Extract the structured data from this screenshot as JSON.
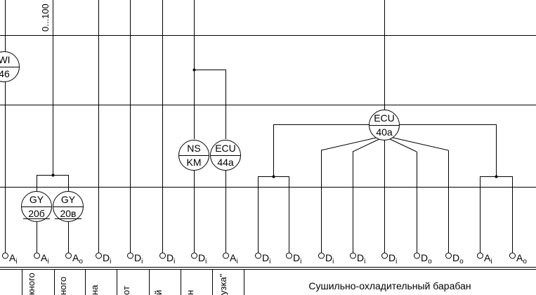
{
  "range_label": "0...100",
  "instruments": [
    {
      "id": "wi",
      "top": "WI",
      "bottom": "46"
    },
    {
      "id": "gy20b",
      "top": "GY",
      "bottom": "20б"
    },
    {
      "id": "gy20v",
      "top": "GY",
      "bottom": "20в"
    },
    {
      "id": "ns-km",
      "top": "NS",
      "bottom": "KM"
    },
    {
      "id": "ecu44a",
      "top": "ECU",
      "bottom": "44а"
    },
    {
      "id": "ecu40a",
      "top": "ECU",
      "bottom": "40а"
    }
  ],
  "io_signals": [
    {
      "letter": "A",
      "sub": "i"
    },
    {
      "letter": "A",
      "sub": "i"
    },
    {
      "letter": "A",
      "sub": "o"
    },
    {
      "letter": "D",
      "sub": "i"
    },
    {
      "letter": "D",
      "sub": "i"
    },
    {
      "letter": "D",
      "sub": "i"
    },
    {
      "letter": "D",
      "sub": "i"
    },
    {
      "letter": "A",
      "sub": "i"
    },
    {
      "letter": "D",
      "sub": "i"
    },
    {
      "letter": "D",
      "sub": "i"
    },
    {
      "letter": "D",
      "sub": "i"
    },
    {
      "letter": "D",
      "sub": "i"
    },
    {
      "letter": "D",
      "sub": "i"
    },
    {
      "letter": "D",
      "sub": "o"
    },
    {
      "letter": "D",
      "sub": "o"
    },
    {
      "letter": "A",
      "sub": "i"
    },
    {
      "letter": "A",
      "sub": "o"
    }
  ],
  "column_labels": [
    "кного",
    "ного",
    "на",
    "от",
    "й",
    "н",
    "узка\""
  ],
  "section_title": "Сушильно-охладительный барабан",
  "colors": {
    "line": "#000000",
    "background": "#ffffff"
  }
}
